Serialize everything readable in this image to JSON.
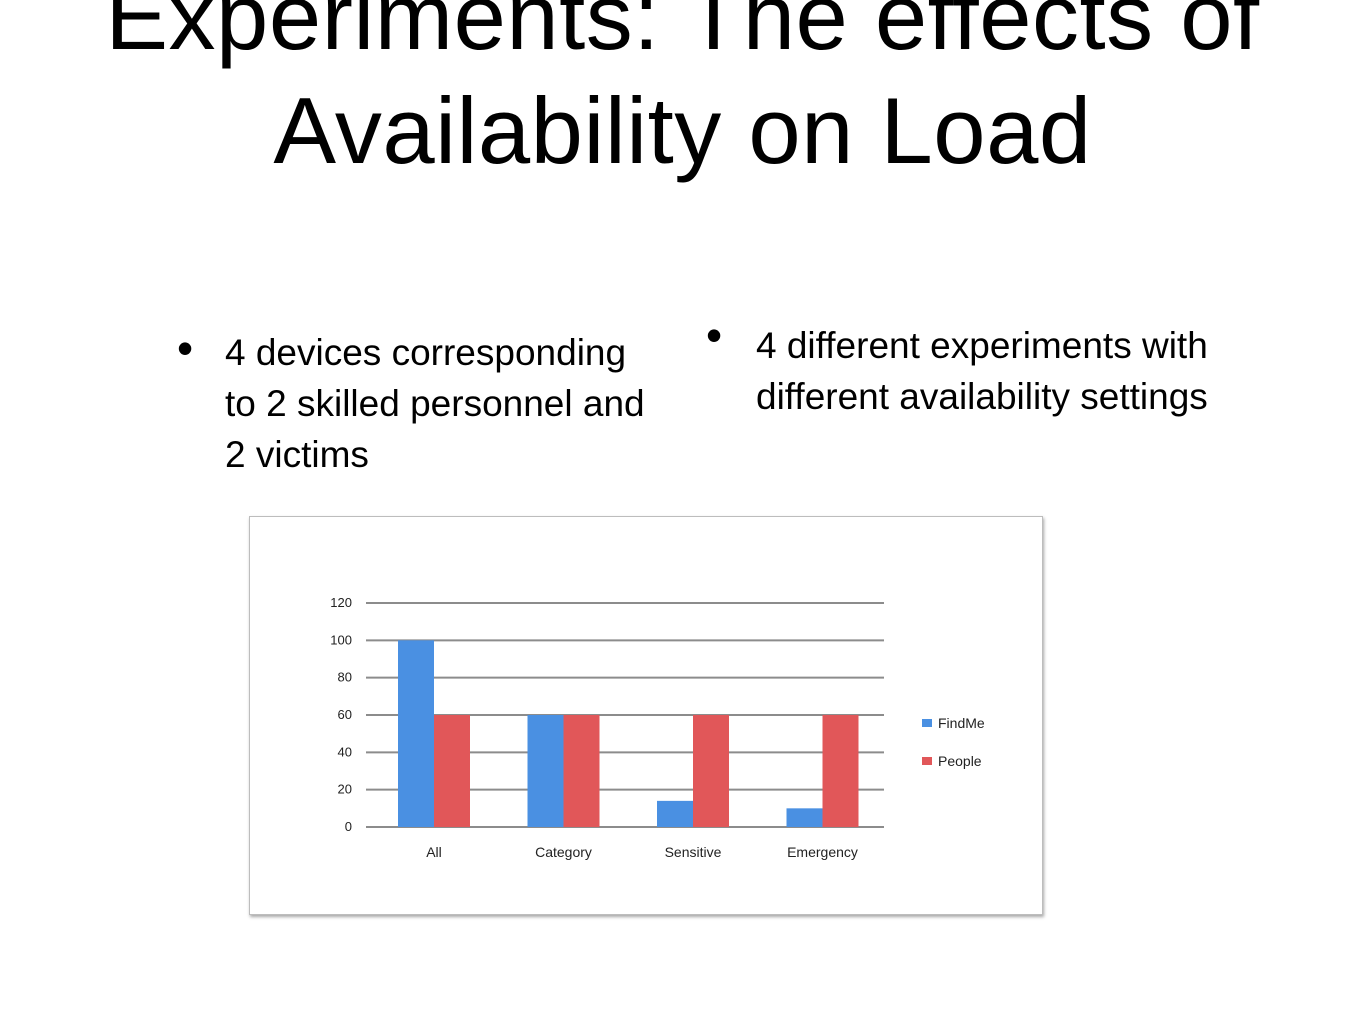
{
  "slide": {
    "title": "Experiments: The effects of Availability on Load",
    "bullets_left": [
      "4 devices corresponding to 2 skilled personnel and 2 victims"
    ],
    "bullets_right": [
      "4 different experiments with different availability settings"
    ]
  },
  "chart_data": {
    "type": "bar",
    "categories": [
      "All",
      "Category",
      "Sensitive",
      "Emergency"
    ],
    "series": [
      {
        "name": "FindMe",
        "color": "#4a90e2",
        "values": [
          100,
          60,
          14,
          10
        ]
      },
      {
        "name": "People",
        "color": "#e15759",
        "values": [
          60,
          60,
          60,
          60
        ]
      }
    ],
    "yticks": [
      "0",
      "20",
      "40",
      "60",
      "80",
      "100",
      "120"
    ],
    "ylim": [
      0,
      120
    ],
    "ylabel": "",
    "xlabel": "",
    "title": "",
    "grid": true,
    "legend": "right"
  }
}
